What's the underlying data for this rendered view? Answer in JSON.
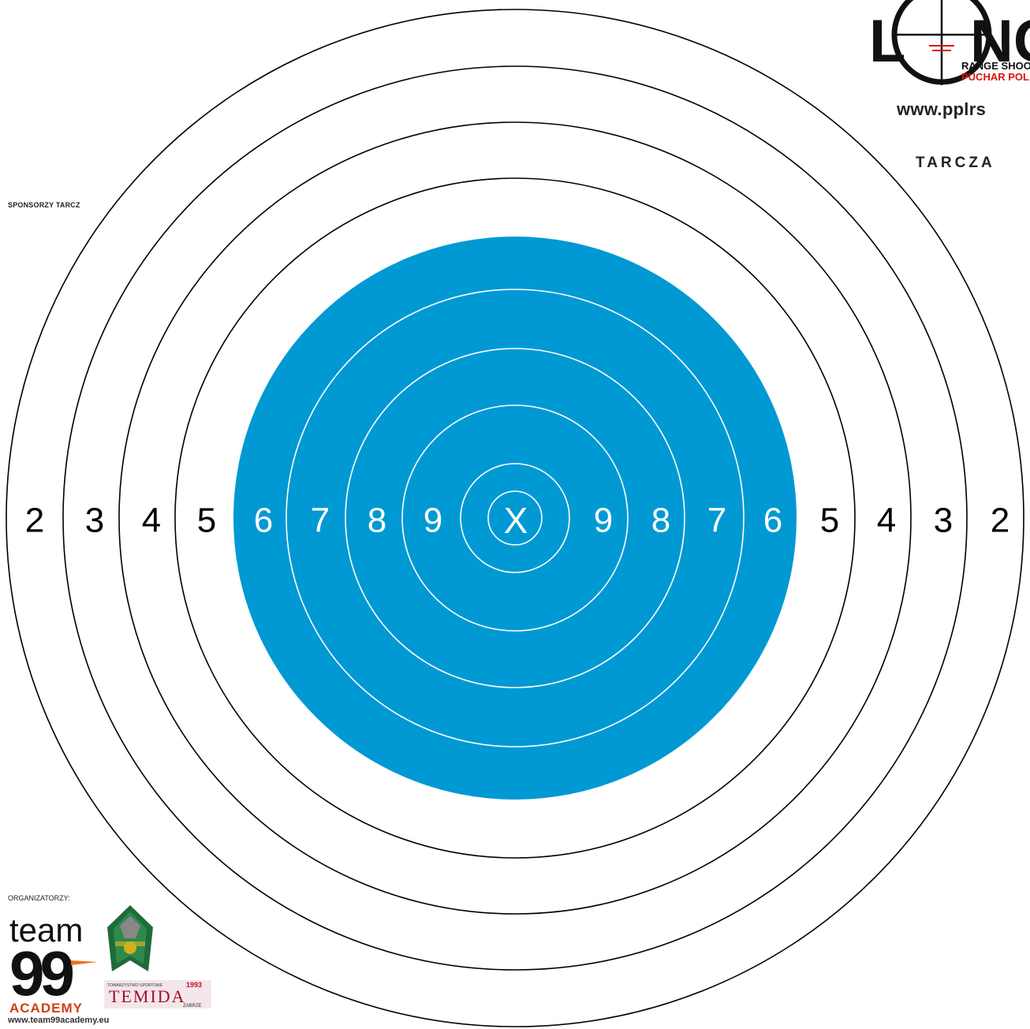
{
  "header": {
    "logo_word": "L NG",
    "logo_line1": "RANGE SHOOT",
    "logo_line2": "PUCHAR POL",
    "website": "www.pplrs",
    "target_label": "TARCZA"
  },
  "sponsors_label": "SPONSORZY TARCZ",
  "organizers_label": "ORGANIZATORZY:",
  "organizers": {
    "team99_word": "team",
    "team99_num": "99",
    "team99_academy": "ACADEMY",
    "team99_url": "www.team99academy.eu",
    "temida_small": "TOWARZYSTWO SPORTOWE",
    "temida_year": "1993",
    "temida_name": "TEMIDA",
    "temida_city": "ZABRZE"
  },
  "target": {
    "center_label": "X",
    "left_numbers": [
      "2",
      "3",
      "4",
      "5",
      "6",
      "7",
      "8",
      "9"
    ],
    "right_numbers": [
      "9",
      "8",
      "7",
      "6",
      "5",
      "4",
      "3",
      "2"
    ],
    "colors": {
      "bull": "#0099d4",
      "ring_line": "#000000",
      "inner_line": "#ffffff",
      "paper": "#ffffff"
    }
  }
}
